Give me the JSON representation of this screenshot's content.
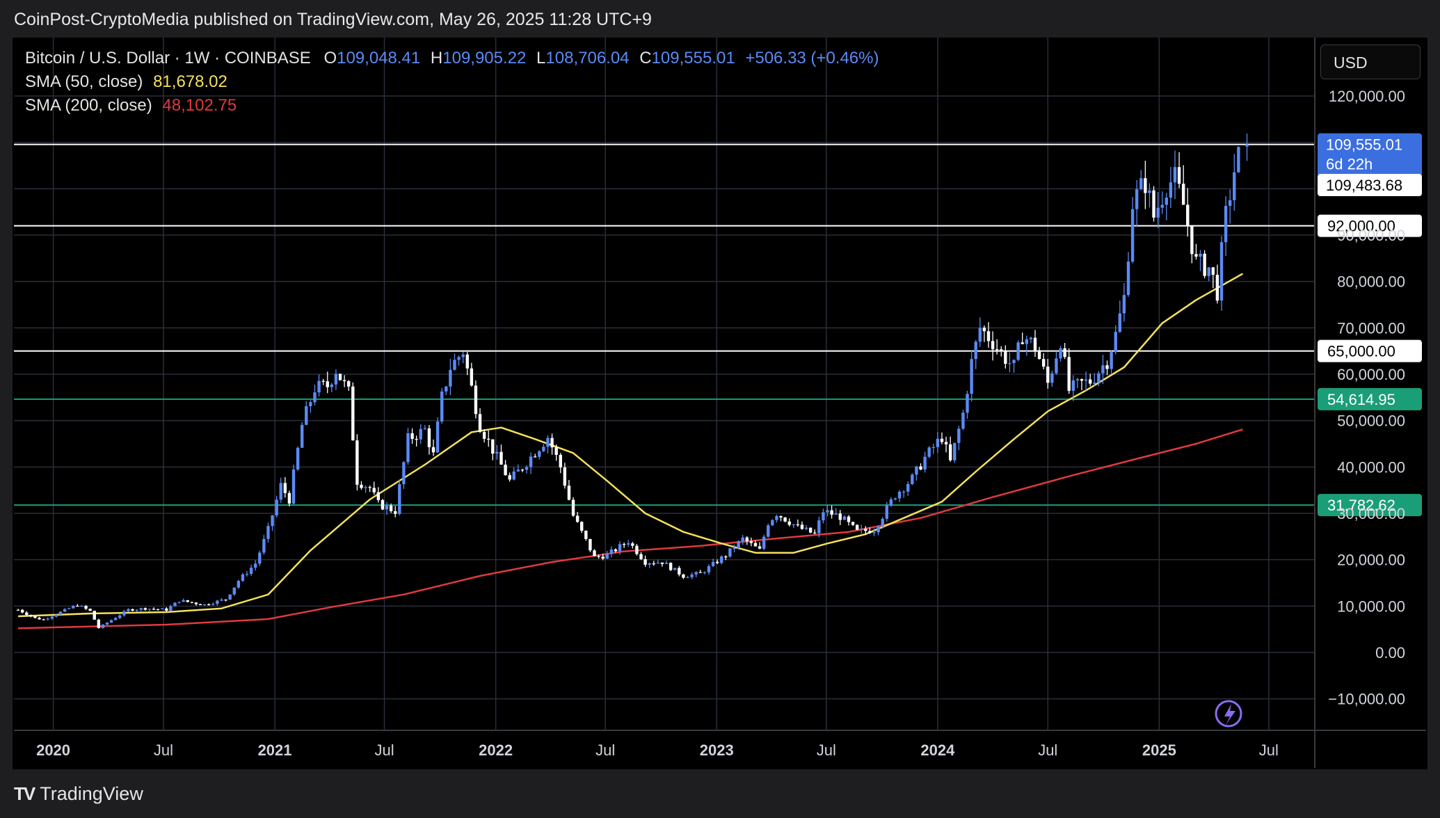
{
  "header": {
    "published": "CoinPost-CryptoMedia published on TradingView.com, May 26, 2025 11:28 UTC+9"
  },
  "legend": {
    "symbol": "Bitcoin / U.S. Dollar · 1W · COINBASE",
    "open_key": "O",
    "open": "109,048.41",
    "high_key": "H",
    "high": "109,905.22",
    "low_key": "L",
    "low": "108,706.04",
    "close_key": "C",
    "close": "109,555.01",
    "change": "+506.33 (+0.46%)",
    "sma50_label": "SMA (50, close)",
    "sma50_value": "81,678.02",
    "sma200_label": "SMA (200, close)",
    "sma200_value": "48,102.75"
  },
  "currency": "USD",
  "footer": {
    "brand": "TradingView"
  },
  "colors": {
    "up": "#5b8af5",
    "down": "#ffffff",
    "sma50": "#f5e15c",
    "sma200": "#e03a3e",
    "grid": "#2a2e39",
    "hline_white": "#ffffff",
    "hline_green": "#1a9e78",
    "axis_text": "#d1d4dc"
  },
  "chart_data": {
    "type": "candlestick",
    "title": "Bitcoin / U.S. Dollar · 1W · COINBASE",
    "ylim": [
      -15000,
      130000
    ],
    "y_ticks": [
      -10000,
      0,
      10000,
      20000,
      30000,
      40000,
      50000,
      60000,
      70000,
      80000,
      90000,
      120000
    ],
    "y_tick_labels": [
      "−10,000.00",
      "0.00",
      "10,000.00",
      "20,000.00",
      "30,000.00",
      "40,000.00",
      "50,000.00",
      "60,000.00",
      "70,000.00",
      "80,000.00",
      "90,000.00",
      "120,000.00"
    ],
    "x_range": [
      "2019-10-28",
      "2025-09-15"
    ],
    "x_ticks": [
      {
        "date": "2020-01-01",
        "label": "2020",
        "bold": true
      },
      {
        "date": "2020-07-01",
        "label": "Jul",
        "bold": false
      },
      {
        "date": "2021-01-01",
        "label": "2021",
        "bold": true
      },
      {
        "date": "2021-07-01",
        "label": "Jul",
        "bold": false
      },
      {
        "date": "2022-01-01",
        "label": "2022",
        "bold": true
      },
      {
        "date": "2022-07-01",
        "label": "Jul",
        "bold": false
      },
      {
        "date": "2023-01-01",
        "label": "2023",
        "bold": true
      },
      {
        "date": "2023-07-01",
        "label": "Jul",
        "bold": false
      },
      {
        "date": "2024-01-01",
        "label": "2024",
        "bold": true
      },
      {
        "date": "2024-07-01",
        "label": "Jul",
        "bold": false
      },
      {
        "date": "2025-01-01",
        "label": "2025",
        "bold": true
      },
      {
        "date": "2025-07-01",
        "label": "Jul",
        "bold": false
      }
    ],
    "horizontal_levels": [
      {
        "value": 109555.01,
        "color": "white"
      },
      {
        "value": 92000,
        "label": "92,000.00",
        "color": "white"
      },
      {
        "value": 65000,
        "label": "65,000.00",
        "color": "white"
      },
      {
        "value": 54614.95,
        "label": "54,614.95",
        "color": "green"
      },
      {
        "value": 31782.62,
        "label": "31,782.62",
        "color": "green"
      }
    ],
    "price_label": {
      "value": 109555.01,
      "label": "109,555.01",
      "countdown": "6d 22h"
    },
    "prev_label": {
      "value": 109483.68,
      "label": "109,483.68"
    },
    "price_series": [
      [
        "2019-11-04",
        9200
      ],
      [
        "2019-12-02",
        7400
      ],
      [
        "2019-12-16",
        7100
      ],
      [
        "2020-01-13",
        8700
      ],
      [
        "2020-02-10",
        10300
      ],
      [
        "2020-03-02",
        8900
      ],
      [
        "2020-03-16",
        5300
      ],
      [
        "2020-04-06",
        7000
      ],
      [
        "2020-05-04",
        9200
      ],
      [
        "2020-06-01",
        9500
      ],
      [
        "2020-07-06",
        9200
      ],
      [
        "2020-07-27",
        11200
      ],
      [
        "2020-09-07",
        10300
      ],
      [
        "2020-10-12",
        11500
      ],
      [
        "2020-11-02",
        15500
      ],
      [
        "2020-11-30",
        19200
      ],
      [
        "2020-12-21",
        26500
      ],
      [
        "2021-01-11",
        36000
      ],
      [
        "2021-01-25",
        33000
      ],
      [
        "2021-02-15",
        49000
      ],
      [
        "2021-03-08",
        57000
      ],
      [
        "2021-03-29",
        57500
      ],
      [
        "2021-04-12",
        61000
      ],
      [
        "2021-05-03",
        56000
      ],
      [
        "2021-05-17",
        37000
      ],
      [
        "2021-06-07",
        35500
      ],
      [
        "2021-06-21",
        32000
      ],
      [
        "2021-07-19",
        30500
      ],
      [
        "2021-08-09",
        46000
      ],
      [
        "2021-09-06",
        48000
      ],
      [
        "2021-09-20",
        42500
      ],
      [
        "2021-10-04",
        55000
      ],
      [
        "2021-10-18",
        61500
      ],
      [
        "2021-11-08",
        65000
      ],
      [
        "2021-11-22",
        57000
      ],
      [
        "2021-12-06",
        49000
      ],
      [
        "2022-01-03",
        42000
      ],
      [
        "2022-01-24",
        37000
      ],
      [
        "2022-02-14",
        40000
      ],
      [
        "2022-03-28",
        46500
      ],
      [
        "2022-04-18",
        40000
      ],
      [
        "2022-05-09",
        29500
      ],
      [
        "2022-06-13",
        20500
      ],
      [
        "2022-07-04",
        21000
      ],
      [
        "2022-08-08",
        24000
      ],
      [
        "2022-09-05",
        19500
      ],
      [
        "2022-10-03",
        19500
      ],
      [
        "2022-11-07",
        16500
      ],
      [
        "2022-12-05",
        17000
      ],
      [
        "2023-01-16",
        21000
      ],
      [
        "2023-02-13",
        24500
      ],
      [
        "2023-03-13",
        22000
      ],
      [
        "2023-03-27",
        28000
      ],
      [
        "2023-04-10",
        30000
      ],
      [
        "2023-05-15",
        27000
      ],
      [
        "2023-06-12",
        25500
      ],
      [
        "2023-06-26",
        30500
      ],
      [
        "2023-07-24",
        29300
      ],
      [
        "2023-08-21",
        26000
      ],
      [
        "2023-09-18",
        26500
      ],
      [
        "2023-10-23",
        34000
      ],
      [
        "2023-11-20",
        37500
      ],
      [
        "2023-12-11",
        42000
      ],
      [
        "2024-01-08",
        46500
      ],
      [
        "2024-01-22",
        41000
      ],
      [
        "2024-02-12",
        51500
      ],
      [
        "2024-02-26",
        62500
      ],
      [
        "2024-03-11",
        70000
      ],
      [
        "2024-04-01",
        67000
      ],
      [
        "2024-04-15",
        64500
      ],
      [
        "2024-05-06",
        61500
      ],
      [
        "2024-05-20",
        68500
      ],
      [
        "2024-06-10",
        66000
      ],
      [
        "2024-07-01",
        58000
      ],
      [
        "2024-07-22",
        67500
      ],
      [
        "2024-08-05",
        56500
      ],
      [
        "2024-08-26",
        58000
      ],
      [
        "2024-09-09",
        58500
      ],
      [
        "2024-10-07",
        63000
      ],
      [
        "2024-10-21",
        68500
      ],
      [
        "2024-11-04",
        76500
      ],
      [
        "2024-11-18",
        97000
      ],
      [
        "2024-12-09",
        101500
      ],
      [
        "2024-12-23",
        94000
      ],
      [
        "2025-01-13",
        101000
      ],
      [
        "2025-01-27",
        102000
      ],
      [
        "2025-02-10",
        96500
      ],
      [
        "2025-03-03",
        84000
      ],
      [
        "2025-03-24",
        83000
      ],
      [
        "2025-04-07",
        78000
      ],
      [
        "2025-04-21",
        94000
      ],
      [
        "2025-05-05",
        104000
      ],
      [
        "2025-05-19",
        109555
      ]
    ],
    "sma50": [
      [
        "2019-11-04",
        7800
      ],
      [
        "2020-03-02",
        8400
      ],
      [
        "2020-07-06",
        8700
      ],
      [
        "2020-10-05",
        9500
      ],
      [
        "2020-12-21",
        12500
      ],
      [
        "2021-03-01",
        22000
      ],
      [
        "2021-06-07",
        33000
      ],
      [
        "2021-09-06",
        40500
      ],
      [
        "2021-11-22",
        47500
      ],
      [
        "2022-01-10",
        48500
      ],
      [
        "2022-03-07",
        46000
      ],
      [
        "2022-05-09",
        43000
      ],
      [
        "2022-07-04",
        37000
      ],
      [
        "2022-09-05",
        30000
      ],
      [
        "2022-11-07",
        26000
      ],
      [
        "2023-01-09",
        23500
      ],
      [
        "2023-03-06",
        21500
      ],
      [
        "2023-05-08",
        21500
      ],
      [
        "2023-07-03",
        23500
      ],
      [
        "2023-09-04",
        25500
      ],
      [
        "2023-11-06",
        29000
      ],
      [
        "2024-01-08",
        32500
      ],
      [
        "2024-03-04",
        39000
      ],
      [
        "2024-05-06",
        46000
      ],
      [
        "2024-07-01",
        52000
      ],
      [
        "2024-09-02",
        56500
      ],
      [
        "2024-11-04",
        61500
      ],
      [
        "2025-01-06",
        71000
      ],
      [
        "2025-03-03",
        76000
      ],
      [
        "2025-05-19",
        81678
      ]
    ],
    "sma200": [
      [
        "2019-11-04",
        5200
      ],
      [
        "2020-07-06",
        6000
      ],
      [
        "2020-12-21",
        7200
      ],
      [
        "2021-04-05",
        9800
      ],
      [
        "2021-08-02",
        12500
      ],
      [
        "2021-12-06",
        16500
      ],
      [
        "2022-04-04",
        19500
      ],
      [
        "2022-08-01",
        21800
      ],
      [
        "2022-12-05",
        23000
      ],
      [
        "2023-04-03",
        24500
      ],
      [
        "2023-08-07",
        26000
      ],
      [
        "2023-12-04",
        29000
      ],
      [
        "2024-04-01",
        33500
      ],
      [
        "2024-08-05",
        38000
      ],
      [
        "2024-12-02",
        42000
      ],
      [
        "2025-03-03",
        45000
      ],
      [
        "2025-05-19",
        48103
      ]
    ]
  }
}
